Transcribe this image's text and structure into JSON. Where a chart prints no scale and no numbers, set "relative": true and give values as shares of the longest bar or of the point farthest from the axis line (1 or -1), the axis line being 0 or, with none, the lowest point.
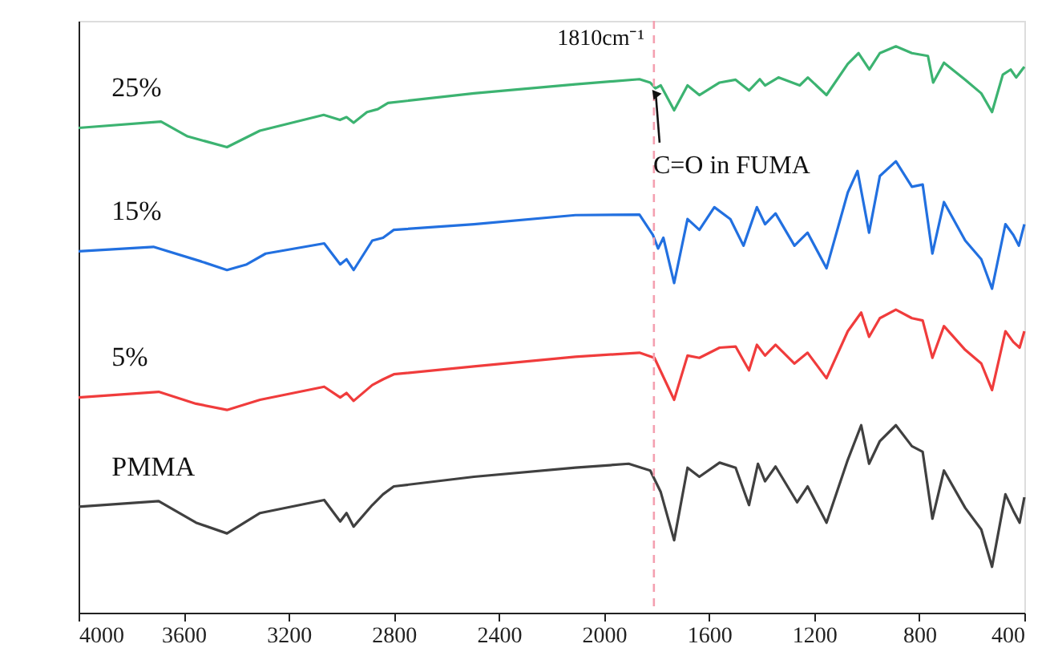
{
  "chart_data": {
    "type": "line",
    "relative": true,
    "xlim": [
      4000,
      400
    ],
    "xticks": [
      4000,
      3600,
      3200,
      2800,
      2400,
      2000,
      1600,
      1200,
      800,
      400
    ],
    "grid": false,
    "tick_labels": "x",
    "series": [
      {
        "name": "25%",
        "color": "#3cb371",
        "x": [
          4000,
          3686,
          3585,
          3435,
          3310,
          3067,
          3005,
          2980,
          2953,
          2902,
          2861,
          2822,
          2495,
          2109,
          1865,
          1824,
          1804,
          1784,
          1733,
          1682,
          1637,
          1560,
          1499,
          1448,
          1407,
          1387,
          1336,
          1255,
          1224,
          1153,
          1072,
          1031,
          990,
          950,
          889,
          828,
          767,
          747,
          706,
          625,
          564,
          523,
          482,
          452,
          431,
          400
        ],
        "values": [
          0.856,
          0.867,
          0.841,
          0.822,
          0.851,
          0.879,
          0.87,
          0.875,
          0.865,
          0.884,
          0.889,
          0.9,
          0.917,
          0.933,
          0.942,
          0.936,
          0.926,
          0.931,
          0.887,
          0.931,
          0.914,
          0.936,
          0.941,
          0.922,
          0.942,
          0.931,
          0.945,
          0.931,
          0.945,
          0.914,
          0.969,
          0.988,
          0.959,
          0.988,
          1,
          0.988,
          0.983,
          0.936,
          0.971,
          0.941,
          0.917,
          0.884,
          0.95,
          0.959,
          0.945,
          0.964
        ]
      },
      {
        "name": "15%",
        "color": "#2270e0",
        "x": [
          4000,
          3715,
          3532,
          3435,
          3360,
          3288,
          3065,
          3004,
          2980,
          2953,
          2882,
          2841,
          2800,
          2495,
          2109,
          1865,
          1814,
          1794,
          1774,
          1733,
          1682,
          1637,
          1580,
          1519,
          1469,
          1418,
          1387,
          1347,
          1275,
          1225,
          1153,
          1072,
          1035,
          991,
          950,
          889,
          828,
          787,
          750,
          706,
          625,
          564,
          523,
          472,
          442,
          421,
          400
        ],
        "values": [
          0.638,
          0.646,
          0.62,
          0.605,
          0.615,
          0.634,
          0.652,
          0.615,
          0.624,
          0.605,
          0.657,
          0.662,
          0.676,
          0.686,
          0.702,
          0.703,
          0.667,
          0.643,
          0.662,
          0.582,
          0.695,
          0.676,
          0.716,
          0.695,
          0.648,
          0.716,
          0.686,
          0.705,
          0.648,
          0.671,
          0.608,
          0.742,
          0.78,
          0.671,
          0.771,
          0.797,
          0.752,
          0.756,
          0.634,
          0.725,
          0.657,
          0.624,
          0.572,
          0.686,
          0.667,
          0.648,
          0.686
        ]
      },
      {
        "name": "5%",
        "color": "#f03c3c",
        "x": [
          4000,
          3695,
          3553,
          3435,
          3309,
          3065,
          3004,
          2980,
          2953,
          2882,
          2841,
          2800,
          2495,
          2109,
          1865,
          1808,
          1733,
          1682,
          1637,
          1560,
          1499,
          1448,
          1418,
          1387,
          1347,
          1275,
          1225,
          1153,
          1072,
          1021,
          991,
          950,
          889,
          828,
          787,
          750,
          706,
          625,
          564,
          523,
          472,
          442,
          418,
          400
        ],
        "values": [
          0.38,
          0.39,
          0.369,
          0.358,
          0.376,
          0.399,
          0.38,
          0.388,
          0.374,
          0.402,
          0.412,
          0.421,
          0.435,
          0.452,
          0.459,
          0.45,
          0.376,
          0.454,
          0.45,
          0.468,
          0.47,
          0.428,
          0.473,
          0.454,
          0.473,
          0.44,
          0.459,
          0.414,
          0.497,
          0.53,
          0.487,
          0.52,
          0.535,
          0.52,
          0.516,
          0.45,
          0.506,
          0.464,
          0.44,
          0.393,
          0.497,
          0.478,
          0.468,
          0.497
        ]
      },
      {
        "name": "PMMA",
        "color": "#404040",
        "x": [
          4000,
          3695,
          3553,
          3435,
          3309,
          3065,
          3004,
          2980,
          2953,
          2882,
          2841,
          2800,
          2495,
          2109,
          1906,
          1824,
          1784,
          1733,
          1682,
          1637,
          1560,
          1499,
          1448,
          1414,
          1387,
          1347,
          1265,
          1225,
          1153,
          1072,
          1021,
          991,
          950,
          889,
          828,
          787,
          750,
          706,
          625,
          564,
          523,
          472,
          442,
          418,
          400
        ],
        "values": [
          0.187,
          0.197,
          0.159,
          0.14,
          0.176,
          0.199,
          0.161,
          0.176,
          0.152,
          0.19,
          0.209,
          0.223,
          0.24,
          0.256,
          0.263,
          0.251,
          0.213,
          0.128,
          0.256,
          0.24,
          0.265,
          0.256,
          0.19,
          0.263,
          0.232,
          0.258,
          0.195,
          0.223,
          0.159,
          0.27,
          0.331,
          0.263,
          0.303,
          0.331,
          0.294,
          0.284,
          0.166,
          0.251,
          0.185,
          0.147,
          0.081,
          0.209,
          0.18,
          0.159,
          0.204
        ]
      }
    ],
    "ref_lines": [
      {
        "axis": "x",
        "value": 1810,
        "label": "1810cm⁻¹",
        "color": "#f4a0b0",
        "line_style": "dashed"
      }
    ],
    "annotations": [
      {
        "text": "C=O in FUMA",
        "x": 1810,
        "y": 0.93
      }
    ]
  }
}
